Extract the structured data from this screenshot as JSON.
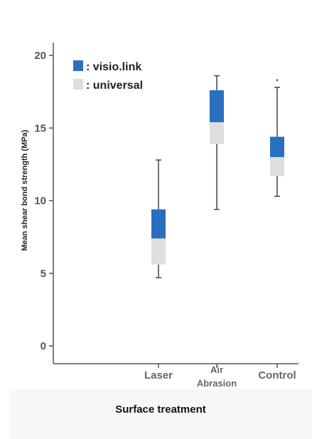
{
  "chart_data": {
    "type": "box",
    "xlabel": "Surface treatment",
    "ylabel": "Mean shear bond strength (MPa)",
    "ylim": [
      0,
      21
    ],
    "yticks": [
      0,
      5,
      10,
      15,
      20
    ],
    "categories": [
      {
        "label_lines": [
          "Laser"
        ]
      },
      {
        "label_lines": [
          "Air",
          "Abrasion"
        ]
      },
      {
        "label_lines": [
          "Control"
        ]
      }
    ],
    "series": [
      {
        "name": "visio.link",
        "color": "#2a6fbf",
        "boxes": [
          {
            "low": 7.4,
            "high": 9.4
          },
          {
            "low": 15.4,
            "high": 17.6
          },
          {
            "low": 13.0,
            "high": 14.4
          }
        ]
      },
      {
        "name": "universal",
        "color": "#dedede",
        "boxes": [
          {
            "low": 5.6,
            "high": 7.4
          },
          {
            "low": 13.9,
            "high": 15.4
          },
          {
            "low": 11.7,
            "high": 13.0
          }
        ]
      }
    ],
    "whiskers": [
      {
        "min": 4.7,
        "max": 12.8
      },
      {
        "min": 9.4,
        "max": 18.6
      },
      {
        "min": 10.3,
        "max": 17.8
      }
    ],
    "outliers": [
      {
        "category_index": 2,
        "value": 18.3
      }
    ],
    "legend_position": "top-left",
    "grid": false
  }
}
